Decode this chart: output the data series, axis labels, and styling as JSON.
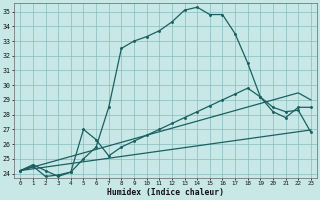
{
  "xlabel": "Humidex (Indice chaleur)",
  "xlim_min": -0.5,
  "xlim_max": 23.5,
  "ylim_min": 23.7,
  "ylim_max": 35.6,
  "yticks": [
    24,
    25,
    26,
    27,
    28,
    29,
    30,
    31,
    32,
    33,
    34,
    35
  ],
  "xticks": [
    0,
    1,
    2,
    3,
    4,
    5,
    6,
    7,
    8,
    9,
    10,
    11,
    12,
    13,
    14,
    15,
    16,
    17,
    18,
    19,
    20,
    21,
    22,
    23
  ],
  "bg_color": "#c8e8e8",
  "grid_color": "#88bbbb",
  "line_color": "#1a6060",
  "marker_size": 2.2,
  "line_width": 0.9,
  "humidex_main": [
    24.2,
    24.5,
    23.8,
    23.9,
    24.1,
    25.0,
    25.8,
    28.5,
    32.5,
    33.0,
    33.3,
    33.7,
    34.3,
    35.1,
    35.3,
    34.8,
    34.8,
    33.5,
    31.5,
    29.2,
    28.5,
    28.2,
    28.3,
    26.8
  ],
  "humidex_low": [
    24.2,
    24.6,
    24.2,
    23.8,
    24.1,
    27.0,
    26.3,
    25.2,
    25.8,
    26.2,
    26.6,
    27.0,
    27.4,
    27.8,
    28.2,
    28.6,
    29.0,
    29.4,
    29.8,
    29.2,
    28.2,
    27.8,
    28.5,
    28.5
  ],
  "trend_upper": [
    24.2,
    24.44,
    24.68,
    24.92,
    25.16,
    25.4,
    25.64,
    25.88,
    26.12,
    26.36,
    26.6,
    26.84,
    27.08,
    27.32,
    27.56,
    27.8,
    28.04,
    28.28,
    28.52,
    28.76,
    29.0,
    29.24,
    29.48,
    29.0
  ],
  "trend_lower": [
    24.2,
    24.32,
    24.44,
    24.56,
    24.68,
    24.8,
    24.92,
    25.04,
    25.16,
    25.28,
    25.4,
    25.52,
    25.64,
    25.76,
    25.88,
    26.0,
    26.12,
    26.24,
    26.36,
    26.48,
    26.6,
    26.72,
    26.84,
    26.96
  ]
}
